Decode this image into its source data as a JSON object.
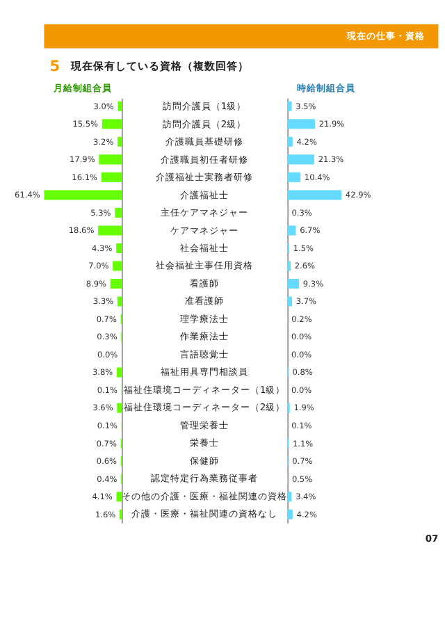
{
  "chart_data": [
    {
      "type": "bar",
      "orientation": "horizontal",
      "title": "現在保有している資格（複数回答）",
      "annotations": [
        "現在の仕事・資格",
        "5",
        "07"
      ],
      "categories": [
        "訪問介護員（1級）",
        "訪問介護員（2級）",
        "介護職員基礎研修",
        "介護職員初任者研修",
        "介護福祉士実務者研修",
        "介護福祉士",
        "主任ケアマネジャー",
        "ケアマネジャー",
        "社会福祉士",
        "社会福祉主事任用資格",
        "看護師",
        "准看護師",
        "理学療法士",
        "作業療法士",
        "言語聴覚士",
        "福祉用具専門相談員",
        "福祉住環境コーディネーター（1級）",
        "福祉住環境コーディネーター（2級）",
        "管理栄養士",
        "栄養士",
        "保健師",
        "認定特定行為業務従事者",
        "その他の介護・医療・福祉関連の資格",
        "介護・医療・福祉関連の資格なし"
      ],
      "series": [
        {
          "name": "月給制組合員",
          "color": "#66ff00",
          "values": [
            3.0,
            15.5,
            3.2,
            17.9,
            16.1,
            61.4,
            5.3,
            18.6,
            4.3,
            7.0,
            8.9,
            3.3,
            0.7,
            0.3,
            0.0,
            3.8,
            0.1,
            3.6,
            0.1,
            0.7,
            0.6,
            0.4,
            4.1,
            1.6
          ],
          "value_labels": [
            "3.0%",
            "15.5%",
            "3.2%",
            "17.9%",
            "16.1%",
            "61.4%",
            "5.3%",
            "18.6%",
            "4.3%",
            "7.0%",
            "8.9%",
            "3.3%",
            "0.7%",
            "0.3%",
            "0.0%",
            "3.8%",
            "0.1%",
            "3.6%",
            "0.1%",
            "0.7%",
            "0.6%",
            "0.4%",
            "4.1%",
            "1.6%"
          ]
        }
      ],
      "grid": false
    },
    {
      "type": "bar",
      "orientation": "horizontal",
      "categories": [
        null,
        null,
        null,
        null,
        null,
        null,
        null,
        null,
        null,
        null,
        null,
        null,
        null,
        null,
        null,
        null,
        null,
        null,
        null,
        null,
        null,
        null,
        null,
        null
      ],
      "series": [
        {
          "name": "時給制組合員",
          "color": "#66d9ff",
          "values": [
            3.5,
            21.9,
            4.2,
            21.3,
            10.4,
            42.9,
            0.3,
            6.7,
            1.5,
            2.6,
            9.3,
            3.7,
            0.2,
            0.0,
            0.0,
            0.8,
            0.0,
            1.9,
            0.1,
            1.1,
            0.7,
            0.5,
            3.4,
            4.2
          ],
          "value_labels": [
            "3.5%",
            "21.9%",
            "4.2%",
            "21.3%",
            "10.4%",
            "42.9%",
            "0.3%",
            "6.7%",
            "1.5%",
            "2.6%",
            "9.3%",
            "3.7%",
            "0.2%",
            "0.0%",
            "0.0%",
            "0.8%",
            "0.0%",
            "1.9%",
            "0.1%",
            "1.1%",
            "0.7%",
            "0.5%",
            "3.4%",
            "4.2%"
          ]
        }
      ],
      "grid": false
    }
  ]
}
